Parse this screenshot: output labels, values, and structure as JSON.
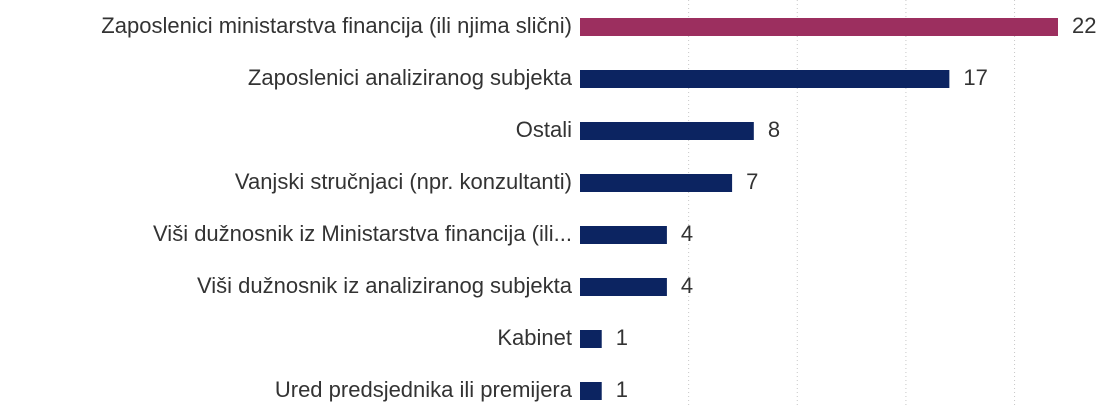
{
  "chart_data": {
    "type": "hbar",
    "categories": [
      "Zaposlenici ministarstva financija (ili njima slični)",
      "Zaposlenici analiziranog subjekta",
      "Ostali",
      "Vanjski stručnjaci (npr. konzultanti)",
      "Viši dužnosnik iz Ministarstva financija (ili...",
      "Viši dužnosnik iz analiziranog subjekta",
      "Kabinet",
      "Ured predsjednika ili premijera"
    ],
    "values": [
      22,
      17,
      8,
      7,
      4,
      4,
      1,
      1
    ],
    "colors": [
      "#9c2f5f",
      "#0c2461",
      "#0c2461",
      "#0c2461",
      "#0c2461",
      "#0c2461",
      "#0c2461",
      "#0c2461"
    ],
    "xlim": [
      0,
      22
    ],
    "xticks": [
      5,
      10,
      15,
      20
    ],
    "grid": true
  }
}
